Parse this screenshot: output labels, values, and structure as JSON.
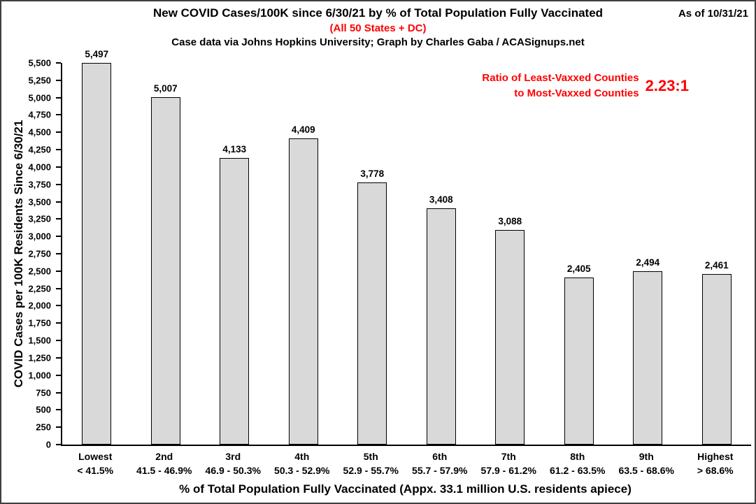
{
  "header": {
    "title": "New COVID Cases/100K since 6/30/21 by % of Total Population Fully Vaccinated",
    "subtitle": "(All 50 States + DC)",
    "credit": "Case data via Johns Hopkins University; Graph by Charles Gaba / ACASignups.net",
    "as_of": "As of 10/31/21"
  },
  "annotation": {
    "line1": "Ratio of Least-Vaxxed Counties",
    "line2": "to Most-Vaxxed Counties",
    "ratio": "2.23:1",
    "color": "#ff0000"
  },
  "chart_data": {
    "type": "bar",
    "title": "New COVID Cases/100K since 6/30/21 by % of Total Population Fully Vaccinated",
    "categories": [
      "Lowest",
      "2nd",
      "3rd",
      "4th",
      "5th",
      "6th",
      "7th",
      "8th",
      "9th",
      "Highest"
    ],
    "category_ranges": [
      "< 41.5%",
      "41.5 - 46.9%",
      "46.9 - 50.3%",
      "50.3 - 52.9%",
      "52.9 - 55.7%",
      "55.7 - 57.9%",
      "57.9 - 61.2%",
      "61.2 - 63.5%",
      "63.5 - 68.6%",
      "> 68.6%"
    ],
    "values": [
      5497,
      5007,
      4133,
      4409,
      3778,
      3408,
      3088,
      2405,
      2494,
      2461
    ],
    "value_labels": [
      "5,497",
      "5,007",
      "4,133",
      "4,409",
      "3,778",
      "3,408",
      "3,088",
      "2,405",
      "2,494",
      "2,461"
    ],
    "xlabel": "% of Total Population Fully Vaccinated (Appx. 33.1 million U.S. residents apiece)",
    "ylabel": "COVID Cases per 100K Residents Since 6/30/21",
    "ylim": [
      0,
      5500
    ],
    "ytick_step": 250,
    "grid": false,
    "legend": false,
    "bar_fill": "#d9d9d9",
    "bar_border": "#000000"
  }
}
